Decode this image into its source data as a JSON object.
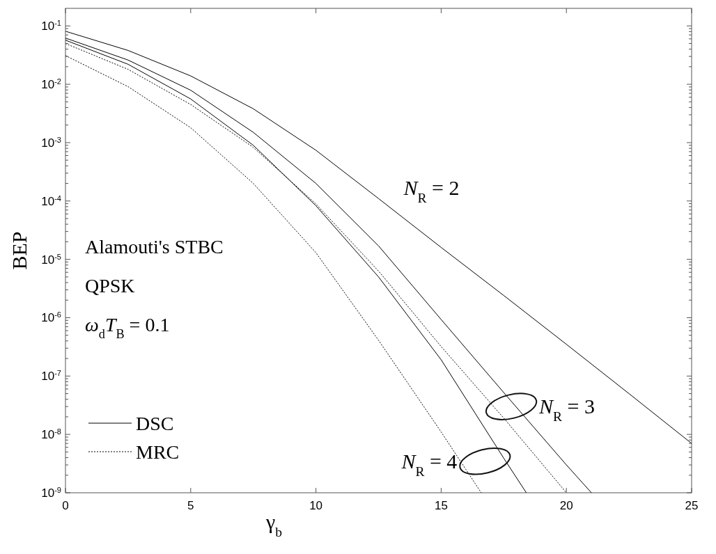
{
  "chart_data": {
    "type": "line",
    "xlabel": "γ$_{b}$",
    "ylabel": "BEP",
    "log": "y",
    "grid": false,
    "legend": "bottom left",
    "xlim": [
      0,
      25
    ],
    "xticks": [
      0,
      5,
      10,
      15,
      20,
      25
    ],
    "ylim": [
      1e-09,
      0.2
    ],
    "yticks": [
      {
        "value": 0.1,
        "label": "10$^{-1}$"
      },
      {
        "value": 0.01,
        "label": "10$^{-2}$"
      },
      {
        "value": 0.001,
        "label": "10$^{-3}$"
      },
      {
        "value": 0.0001,
        "label": "10$^{-4}$"
      },
      {
        "value": 1e-05,
        "label": "10$^{-5}$"
      },
      {
        "value": 1e-06,
        "label": "10$^{-6}$"
      },
      {
        "value": 1e-07,
        "label": "10$^{-7}$"
      },
      {
        "value": 1e-08,
        "label": "10$^{-8}$"
      },
      {
        "value": 1e-09,
        "label": "10$^{-9}$"
      }
    ],
    "series": [
      {
        "name": "DSC",
        "color": "#000000",
        "line_style": "solid",
        "x": [
          0,
          2.5,
          5,
          7.5,
          10,
          12.5,
          15,
          17.5,
          20,
          22.5,
          25
        ],
        "values": [
          0.081,
          0.038,
          0.0139,
          0.0038,
          0.00074,
          0.00011,
          1.6e-05,
          2.4e-06,
          3.5e-07,
          5e-08,
          7e-09
        ]
      },
      {
        "color": "#000000",
        "line_style": "solid",
        "x": [
          0,
          2.5,
          5,
          7.5,
          10,
          12.5,
          15,
          17.5,
          20,
          21
        ],
        "values": [
          0.062,
          0.026,
          0.0079,
          0.0015,
          0.0002,
          1.7e-05,
          9.3e-07,
          5.2e-08,
          3e-09,
          1e-09
        ]
      },
      {
        "color": "#000000",
        "line_style": "solid",
        "x": [
          0,
          2.5,
          5,
          7.5,
          10,
          12.5,
          15,
          17.5,
          18.4
        ],
        "values": [
          0.057,
          0.022,
          0.0056,
          0.0009,
          8.3e-05,
          5e-06,
          1.9e-07,
          3.9e-09,
          1e-09
        ]
      },
      {
        "name": "MRC",
        "color": "#000000",
        "line_style": "dotted",
        "x": [
          0,
          2.5,
          5,
          7.5,
          10,
          12.5,
          15,
          17.5,
          20
        ],
        "values": [
          0.05,
          0.018,
          0.0045,
          0.00083,
          8.9e-05,
          6.3e-06,
          3.2e-07,
          1.9e-08,
          1e-09
        ]
      },
      {
        "color": "#000000",
        "line_style": "dotted",
        "x": [
          0,
          2.5,
          5,
          7.5,
          10,
          12.5,
          15,
          16.6
        ],
        "values": [
          0.031,
          0.0091,
          0.0018,
          0.0002,
          1.3e-05,
          4.1e-07,
          1.1e-08,
          1e-09
        ]
      }
    ],
    "annotations": [
      "N$_{R}$ = 2",
      "N$_{R}$ = 3",
      "N$_{R}$ = 4",
      "Alamouti's STBC",
      "QPSK",
      "ω$_{d}$T$_{B}$ = 0.1"
    ]
  }
}
